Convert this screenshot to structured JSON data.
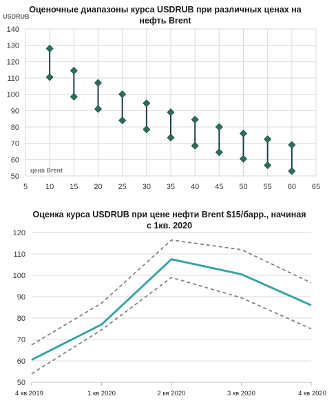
{
  "chart_data": [
    {
      "type": "scatter",
      "title_line1": "Оценочные диапазоны курса USDRUB при различных ценах на",
      "title_line2": "нефть Brent",
      "ylabel": "USDRUB",
      "xlabel": "цена Brent",
      "xlim": [
        5,
        65
      ],
      "ylim": [
        50,
        140
      ],
      "x_ticks": [
        5,
        10,
        15,
        20,
        25,
        30,
        35,
        40,
        45,
        50,
        55,
        60,
        65
      ],
      "y_ticks": [
        50,
        60,
        70,
        80,
        90,
        100,
        110,
        120,
        130,
        140
      ],
      "grid": true,
      "series": [
        {
          "x": 10,
          "high": 128,
          "low": 110.5
        },
        {
          "x": 15,
          "high": 114.5,
          "low": 98.5
        },
        {
          "x": 20,
          "high": 107,
          "low": 91
        },
        {
          "x": 25,
          "high": 100,
          "low": 84
        },
        {
          "x": 30,
          "high": 94.5,
          "low": 78.5
        },
        {
          "x": 35,
          "high": 89,
          "low": 73.5
        },
        {
          "x": 40,
          "high": 84.5,
          "low": 68.5
        },
        {
          "x": 45,
          "high": 80,
          "low": 64.5
        },
        {
          "x": 50,
          "high": 76,
          "low": 60.5
        },
        {
          "x": 55,
          "high": 72.5,
          "low": 56.5
        },
        {
          "x": 60,
          "high": 69,
          "low": 53
        }
      ],
      "colors": {
        "marker": "#2e6e5a",
        "line": "#1c3f44"
      }
    },
    {
      "type": "line",
      "title_line1": "Оценка курса USDRUB при цене нефти Brent $15/барр., начиная",
      "title_line2": "с 1кв. 2020",
      "categories": [
        "4 кв 2019",
        "1 кв 2020",
        "2 кв 2020",
        "3 кв 2020",
        "4 кв 2020"
      ],
      "ylim": [
        50,
        120
      ],
      "y_ticks": [
        50,
        60,
        70,
        80,
        90,
        100,
        110,
        120
      ],
      "grid": true,
      "series": [
        {
          "values": [
            60.5,
            77,
            107.5,
            100.5,
            86
          ],
          "style": "solid",
          "color": "#3aa3a3"
        },
        {
          "values": [
            67.5,
            87,
            116.5,
            112,
            96.5
          ],
          "style": "dashed",
          "color": "#808080"
        },
        {
          "values": [
            54,
            74.5,
            99,
            89.5,
            75
          ],
          "style": "dashed",
          "color": "#808080"
        }
      ]
    }
  ]
}
